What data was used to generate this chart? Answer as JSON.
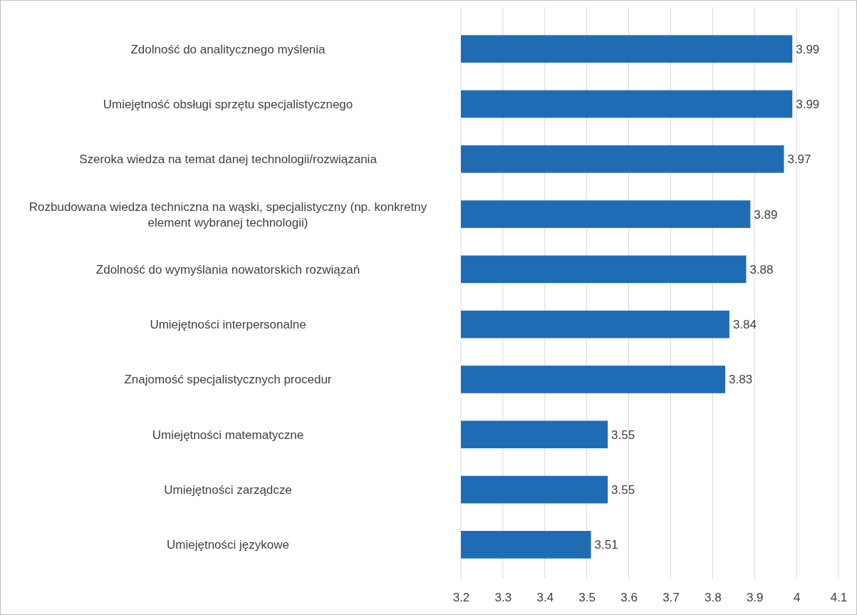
{
  "chart_data": {
    "type": "bar",
    "orientation": "horizontal",
    "categories": [
      "Zdolność do analitycznego myślenia",
      "Umiejętność obsługi sprzętu specjalistycznego",
      "Szeroka wiedza na temat danej technologii/rozwiązania",
      "Rozbudowana wiedza techniczna na wąski, specjalistyczny (np. konkretny element wybranej technologii)",
      "Zdolność do wymyślania nowatorskich rozwiązań",
      "Umiejętności interpersonalne",
      "Znajomość specjalistycznych procedur",
      "Umiejętności matematyczne",
      "Umiejętności zarządcze",
      "Umiejętności językowe"
    ],
    "values": [
      3.99,
      3.99,
      3.97,
      3.89,
      3.88,
      3.84,
      3.83,
      3.55,
      3.55,
      3.51
    ],
    "color": "#1f6cb5",
    "xlim": [
      3.2,
      4.1
    ],
    "xticks": [
      3.2,
      3.3,
      3.4,
      3.5,
      3.6,
      3.7,
      3.8,
      3.9,
      4,
      4.1
    ],
    "grid": "x",
    "data_labels": true
  }
}
